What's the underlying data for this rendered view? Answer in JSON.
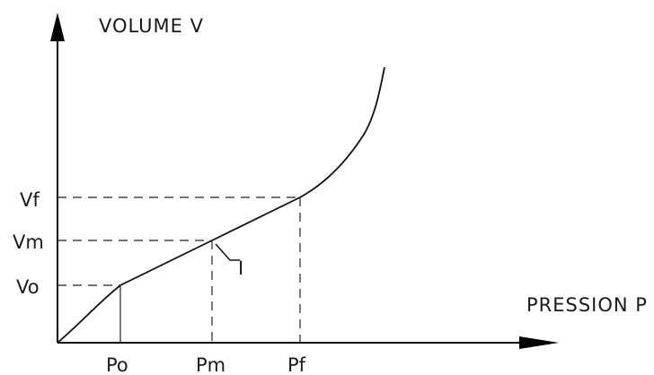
{
  "chart_data": {
    "type": "line",
    "xlabel": "PRESSION P",
    "ylabel": "VOLUME V",
    "x_ticks": [
      "Po",
      "Pm",
      "Pf"
    ],
    "y_ticks": [
      "Vo",
      "Vm",
      "Vf"
    ],
    "annotations": [
      {
        "label": "I",
        "target": "Pm,Vm"
      }
    ],
    "reference_points": [
      {
        "x": "Po",
        "y": "Vo",
        "x_guide": "solid",
        "y_guide": "dashed"
      },
      {
        "x": "Pm",
        "y": "Vm",
        "x_guide": "dashed",
        "y_guide": "dashed"
      },
      {
        "x": "Pf",
        "y": "Vf",
        "x_guide": "dashed",
        "y_guide": "dashed"
      }
    ],
    "grid": false,
    "legend": "none"
  },
  "colors": {
    "line": "#111111",
    "background": "#ffffff"
  }
}
